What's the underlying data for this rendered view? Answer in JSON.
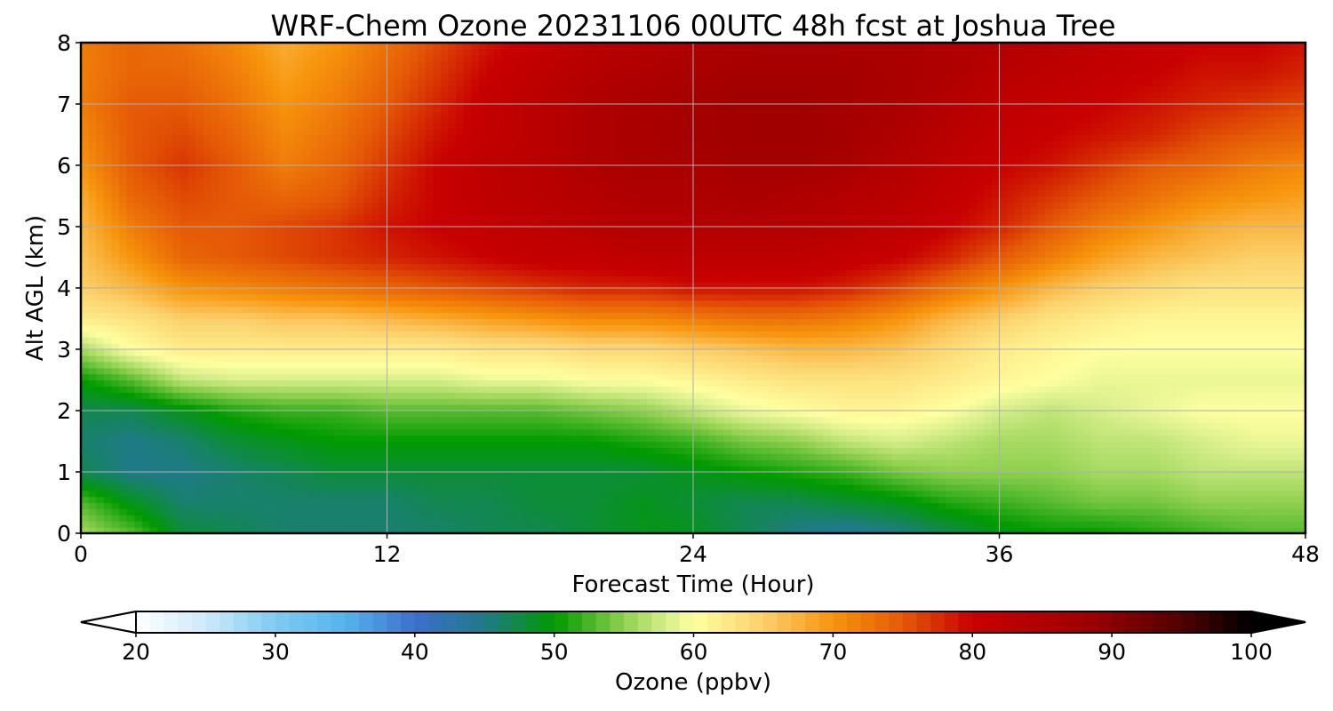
{
  "chart_data": {
    "type": "heatmap",
    "title": "WRF-Chem Ozone  20231106 00UTC 48h fcst at Joshua Tree",
    "xlabel": "Forecast Time (Hour)",
    "ylabel": "Alt AGL (km)",
    "xlim": [
      0,
      48
    ],
    "ylim": [
      0,
      8
    ],
    "xticks": [
      "0",
      "12",
      "24",
      "36",
      "48"
    ],
    "yticks": [
      "0",
      "1",
      "2",
      "3",
      "4",
      "5",
      "6",
      "7",
      "8"
    ],
    "grid": true,
    "x": [
      0,
      2,
      4,
      6,
      8,
      10,
      12,
      14,
      16,
      18,
      20,
      22,
      24,
      26,
      28,
      30,
      32,
      34,
      36,
      38,
      40,
      42,
      44,
      46,
      48
    ],
    "y": [
      0,
      0.5,
      1,
      1.5,
      2,
      2.5,
      3,
      3.5,
      4,
      4.5,
      5,
      5.5,
      6,
      6.5,
      7,
      7.5,
      8
    ],
    "values": [
      [
        56,
        53,
        48,
        47,
        46,
        46,
        46,
        46,
        47,
        47,
        48,
        49,
        49,
        47,
        45,
        44,
        45,
        47,
        49,
        50,
        50,
        51,
        52,
        53,
        53
      ],
      [
        53,
        49,
        46,
        46,
        46,
        46,
        46,
        47,
        47,
        48,
        48,
        49,
        48,
        47,
        47,
        48,
        49,
        51,
        52,
        53,
        54,
        54,
        55,
        55,
        55
      ],
      [
        47,
        45,
        45,
        46,
        47,
        48,
        48,
        48,
        48,
        48,
        48,
        48,
        49,
        50,
        51,
        52,
        54,
        55,
        55,
        55,
        56,
        56,
        57,
        57,
        57
      ],
      [
        46,
        45,
        46,
        48,
        49,
        50,
        50,
        50,
        50,
        50,
        50,
        51,
        52,
        54,
        55,
        57,
        58,
        57,
        56,
        56,
        57,
        57,
        58,
        59,
        59
      ],
      [
        47,
        47,
        49,
        51,
        52,
        52,
        53,
        53,
        53,
        53,
        54,
        55,
        57,
        59,
        60,
        61,
        61,
        60,
        58,
        57,
        58,
        59,
        60,
        60,
        60
      ],
      [
        50,
        53,
        57,
        58,
        58,
        58,
        58,
        58,
        59,
        59,
        60,
        60,
        61,
        62,
        63,
        63,
        63,
        62,
        61,
        60,
        59,
        59,
        59,
        59,
        59
      ],
      [
        56,
        60,
        62,
        62,
        62,
        62,
        62,
        62,
        63,
        63,
        64,
        64,
        65,
        66,
        67,
        67,
        66,
        64,
        62,
        61,
        60,
        60,
        60,
        60,
        60
      ],
      [
        62,
        63,
        65,
        65,
        66,
        66,
        67,
        68,
        69,
        70,
        71,
        71,
        72,
        73,
        73,
        72,
        70,
        67,
        65,
        63,
        62,
        61,
        61,
        61,
        61
      ],
      [
        65,
        67,
        70,
        71,
        72,
        73,
        74,
        75,
        76,
        77,
        78,
        78,
        79,
        79,
        79,
        78,
        76,
        73,
        70,
        67,
        65,
        64,
        63,
        63,
        63
      ],
      [
        66,
        70,
        74,
        75,
        76,
        77,
        78,
        79,
        80,
        81,
        81,
        82,
        82,
        82,
        82,
        81,
        80,
        78,
        75,
        72,
        69,
        67,
        66,
        65,
        65
      ],
      [
        67,
        72,
        75,
        75,
        76,
        77,
        79,
        80,
        81,
        82,
        83,
        84,
        84,
        84,
        84,
        83,
        82,
        80,
        78,
        75,
        72,
        70,
        68,
        67,
        67
      ],
      [
        68,
        74,
        76,
        75,
        74,
        75,
        78,
        80,
        82,
        83,
        84,
        85,
        85,
        86,
        85,
        84,
        83,
        81,
        79,
        77,
        75,
        73,
        71,
        70,
        69
      ],
      [
        70,
        75,
        77,
        75,
        72,
        74,
        77,
        80,
        82,
        83,
        85,
        86,
        86,
        87,
        87,
        86,
        84,
        82,
        80,
        79,
        77,
        75,
        74,
        72,
        71
      ],
      [
        71,
        75,
        76,
        74,
        71,
        73,
        76,
        79,
        81,
        83,
        85,
        86,
        87,
        88,
        88,
        87,
        85,
        83,
        81,
        80,
        79,
        78,
        76,
        75,
        74
      ],
      [
        72,
        75,
        75,
        73,
        70,
        72,
        75,
        78,
        81,
        83,
        85,
        86,
        87,
        88,
        88,
        87,
        86,
        84,
        82,
        81,
        80,
        79,
        78,
        77,
        76
      ],
      [
        72,
        74,
        74,
        72,
        69,
        71,
        74,
        77,
        80,
        82,
        84,
        85,
        86,
        87,
        87,
        87,
        86,
        85,
        83,
        82,
        81,
        80,
        79,
        79,
        78
      ],
      [
        72,
        74,
        73,
        71,
        68,
        70,
        73,
        76,
        79,
        81,
        83,
        84,
        85,
        86,
        86,
        86,
        86,
        85,
        84,
        83,
        82,
        81,
        80,
        80,
        79
      ]
    ],
    "colorbar": {
      "label": "Ozone  (ppbv)",
      "min": 20,
      "max": 100,
      "ticks": [
        "20",
        "30",
        "40",
        "50",
        "60",
        "70",
        "80",
        "90",
        "100"
      ],
      "extend": "both",
      "stops": [
        {
          "v": 20,
          "c": "#ffffff"
        },
        {
          "v": 25,
          "c": "#cdeafa"
        },
        {
          "v": 30,
          "c": "#7fcbf1"
        },
        {
          "v": 35,
          "c": "#55b4ec"
        },
        {
          "v": 40,
          "c": "#3d6fcc"
        },
        {
          "v": 45,
          "c": "#1f7a88"
        },
        {
          "v": 50,
          "c": "#009a00"
        },
        {
          "v": 55,
          "c": "#8fd04f"
        },
        {
          "v": 58,
          "c": "#d6ee8a"
        },
        {
          "v": 60,
          "c": "#ffffa0"
        },
        {
          "v": 65,
          "c": "#fbd06a"
        },
        {
          "v": 70,
          "c": "#f7940c"
        },
        {
          "v": 75,
          "c": "#e55a06"
        },
        {
          "v": 80,
          "c": "#c80000"
        },
        {
          "v": 88,
          "c": "#a00000"
        },
        {
          "v": 95,
          "c": "#500000"
        },
        {
          "v": 100,
          "c": "#000000"
        }
      ]
    }
  }
}
